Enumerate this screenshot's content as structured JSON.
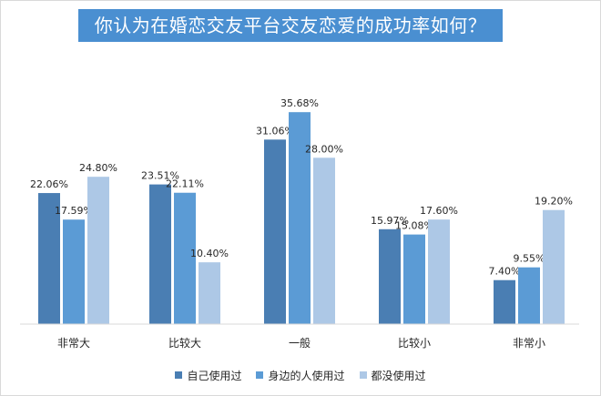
{
  "chart_data": {
    "type": "bar",
    "title": "你认为在婚恋交友平台交友恋爱的成功率如何？",
    "categories": [
      "非常大",
      "比较大",
      "一般",
      "比较小",
      "非常小"
    ],
    "series": [
      {
        "name": "自己使用过",
        "color": "#4a7eb3",
        "values": [
          22.06,
          23.51,
          31.06,
          15.97,
          7.4
        ],
        "labels": [
          "22.06%",
          "23.51%",
          "31.06%",
          "15.97%",
          "7.40%"
        ]
      },
      {
        "name": "身边的人使用过",
        "color": "#5b9bd5",
        "values": [
          17.59,
          22.11,
          35.68,
          15.08,
          9.55
        ],
        "labels": [
          "17.59%",
          "22.11%",
          "35.68%",
          "15.08%",
          "9.55%"
        ]
      },
      {
        "name": "都没使用过",
        "color": "#adc8e6",
        "values": [
          24.8,
          10.4,
          28.0,
          17.6,
          19.2
        ],
        "labels": [
          "24.80%",
          "10.40%",
          "28.00%",
          "17.60%",
          "19.20%"
        ]
      }
    ],
    "ylim": [
      0,
      40
    ],
    "grid": false,
    "legend_position": "bottom"
  }
}
